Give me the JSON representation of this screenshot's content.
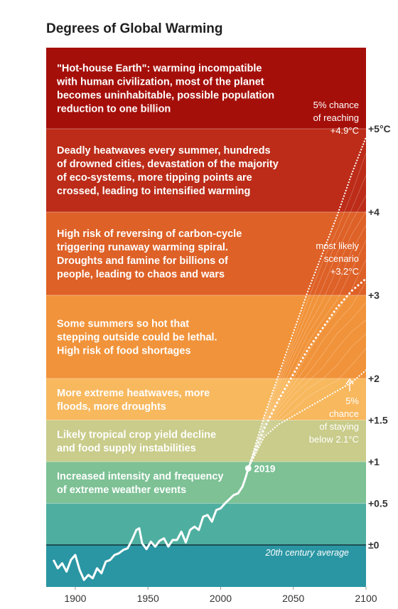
{
  "chart_data": {
    "type": "line",
    "title": "Degrees of Global Warming",
    "xlim": [
      1880,
      2100
    ],
    "ylim": [
      -0.55,
      6.0
    ],
    "x_ticks": [
      {
        "value": 1900,
        "label": "1900"
      },
      {
        "value": 1950,
        "label": "1950"
      },
      {
        "value": 2000,
        "label": "2000"
      },
      {
        "value": 2050,
        "label": "2050"
      },
      {
        "value": 2100,
        "label": "2100"
      }
    ],
    "y_ticks": [
      {
        "value": 0,
        "label": "±0"
      },
      {
        "value": 0.5,
        "label": "+0.5"
      },
      {
        "value": 1,
        "label": "+1"
      },
      {
        "value": 1.5,
        "label": "+1.5"
      },
      {
        "value": 2,
        "label": "+2"
      },
      {
        "value": 3,
        "label": "+3"
      },
      {
        "value": 4,
        "label": "+4"
      },
      {
        "value": 5,
        "label": "+5°C"
      }
    ],
    "bands": [
      {
        "from": -0.55,
        "to": 0,
        "color": "#2a96a3",
        "lines": []
      },
      {
        "from": 0,
        "to": 0.5,
        "color": "#4eafa0",
        "lines": []
      },
      {
        "from": 0.5,
        "to": 1,
        "color": "#7dc195",
        "lines": [
          "Increased intensity and frequency",
          "of extreme weather events"
        ]
      },
      {
        "from": 1,
        "to": 1.5,
        "color": "#c9cc8a",
        "lines": [
          "Likely tropical crop yield decline",
          "and food supply instabilities"
        ]
      },
      {
        "from": 1.5,
        "to": 2,
        "color": "#f8b85e",
        "lines": [
          "More extreme heatwaves, more",
          "floods, more droughts"
        ]
      },
      {
        "from": 2,
        "to": 3,
        "color": "#f1933a",
        "lines": [
          "Some summers so hot that",
          "stepping outside could be lethal.",
          "High risk of food shortages"
        ]
      },
      {
        "from": 3,
        "to": 4,
        "color": "#de6127",
        "lines": [
          "High risk of reversing of carbon-cycle",
          "triggering runaway warming spiral.",
          "Droughts and famine for billions of",
          "people, leading to chaos and wars"
        ]
      },
      {
        "from": 4,
        "to": 5,
        "color": "#bc2c18",
        "lines": [
          "Deadly heatwaves every summer, hundreds",
          "of drowned cities, devastation of the majority",
          "of eco-systems, more tipping points are",
          "crossed, leading to intensified warming"
        ]
      },
      {
        "from": 5,
        "to": 6.0,
        "color": "#a50f0a",
        "lines": [
          "\"Hot-house Earth\": warming incompatible",
          "with human civilization, most of the planet",
          "becomes uninhabitable, possible population",
          "reduction to one billion"
        ]
      }
    ],
    "baseline_label": "20th century average",
    "historical": {
      "x": [
        1885,
        1888,
        1891,
        1894,
        1897,
        1900,
        1903,
        1906,
        1909,
        1912,
        1915,
        1918,
        1921,
        1924,
        1927,
        1930,
        1933,
        1936,
        1939,
        1942,
        1944,
        1946,
        1949,
        1952,
        1955,
        1958,
        1961,
        1964,
        1967,
        1970,
        1973,
        1976,
        1979,
        1982,
        1985,
        1988,
        1991,
        1994,
        1997,
        2000,
        2003,
        2006,
        2009,
        2012,
        2015,
        2017,
        2019
      ],
      "y": [
        -0.18,
        -0.28,
        -0.22,
        -0.32,
        -0.18,
        -0.12,
        -0.3,
        -0.42,
        -0.36,
        -0.4,
        -0.28,
        -0.34,
        -0.2,
        -0.18,
        -0.12,
        -0.1,
        -0.06,
        -0.04,
        0.06,
        0.18,
        0.2,
        0.02,
        -0.05,
        0.04,
        -0.02,
        0.05,
        0.08,
        -0.02,
        0.06,
        0.06,
        0.16,
        0.03,
        0.18,
        0.22,
        0.18,
        0.34,
        0.36,
        0.28,
        0.42,
        0.44,
        0.5,
        0.55,
        0.6,
        0.62,
        0.7,
        0.8,
        0.92
      ]
    },
    "start_point": {
      "x": 2019,
      "y": 0.92,
      "label": "2019"
    },
    "projections": [
      {
        "label_lines": [
          "5% chance",
          "of reaching",
          "+4.9°C"
        ],
        "end": {
          "x": 2100,
          "y": 4.9
        },
        "x": [
          2019,
          2030,
          2040,
          2050,
          2060,
          2070,
          2080,
          2090,
          2100
        ],
        "y": [
          0.92,
          1.55,
          2.05,
          2.55,
          3.05,
          3.5,
          3.95,
          4.45,
          4.9
        ]
      },
      {
        "label_lines": [
          "most likely",
          "scenario",
          "+3.2°C"
        ],
        "end": {
          "x": 2100,
          "y": 3.2
        },
        "x": [
          2019,
          2030,
          2040,
          2050,
          2060,
          2070,
          2080,
          2090,
          2100
        ],
        "y": [
          0.92,
          1.4,
          1.75,
          2.05,
          2.35,
          2.6,
          2.85,
          3.05,
          3.2
        ]
      },
      {
        "label_lines": [
          "5%",
          "chance",
          "of staying",
          "below 2.1°C"
        ],
        "end": {
          "x": 2100,
          "y": 2.1
        },
        "x": [
          2019,
          2030,
          2040,
          2050,
          2060,
          2070,
          2080,
          2090,
          2100
        ],
        "y": [
          0.92,
          1.3,
          1.45,
          1.55,
          1.65,
          1.75,
          1.85,
          1.95,
          2.1
        ]
      }
    ]
  },
  "colors": {
    "line": "#ffffff",
    "baseline": "#15333a",
    "axis_text": "#333333",
    "arrow": "#ffffff"
  }
}
